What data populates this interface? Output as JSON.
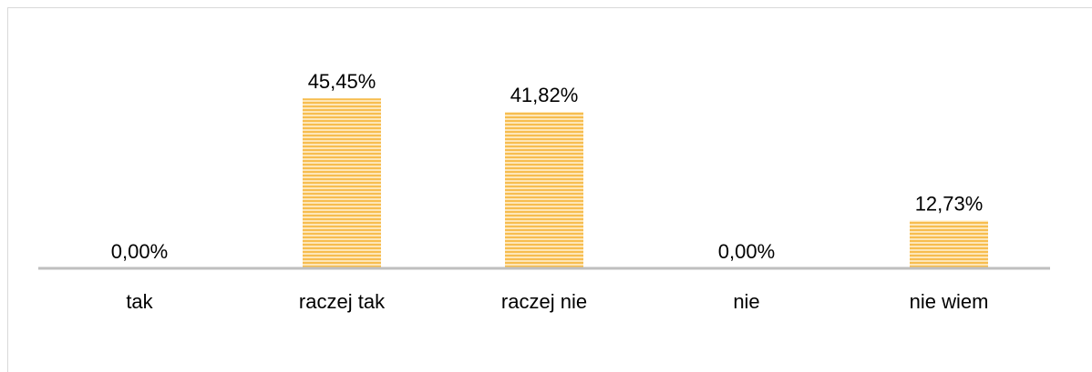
{
  "chart_data": {
    "type": "bar",
    "categories": [
      "tak",
      "raczej tak",
      "raczej nie",
      "nie",
      "nie wiem"
    ],
    "values": [
      0,
      45.45,
      41.82,
      0,
      12.73
    ],
    "value_labels": [
      "0,00%",
      "45,45%",
      "41,82%",
      "0,00%",
      "12,73%"
    ],
    "color": "#f7bd4f"
  }
}
